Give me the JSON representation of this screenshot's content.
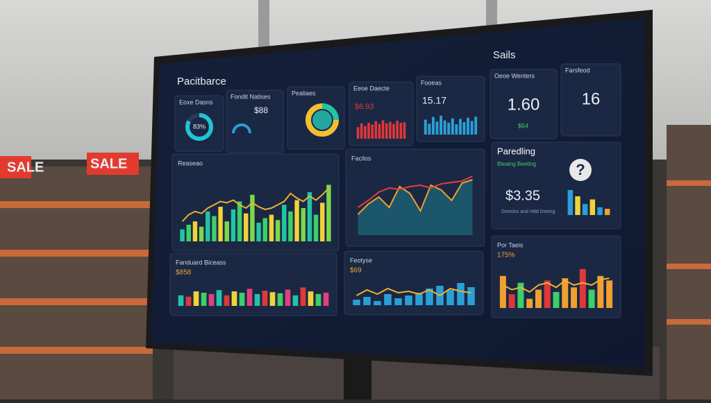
{
  "scene": {
    "signs": [
      "SALE",
      "SALE"
    ]
  },
  "header": {
    "title": "Pacitbarce",
    "brand": "Sails"
  },
  "tiles": [
    {
      "title": "Eoxe Dasns",
      "value": {
        "value": 83,
        "label": "83%"
      }
    },
    {
      "title": "Fondit Natises",
      "value": "$88"
    },
    {
      "title": "Pealiaes"
    },
    {
      "title": "Eeoe Daecte",
      "value": "$6.93",
      "bars": [
        45,
        60,
        50,
        62,
        55,
        68,
        58,
        72,
        60,
        66,
        58,
        70,
        62,
        64
      ],
      "color": "#e0373a"
    },
    {
      "title": "Fooeas",
      "value": "15.17",
      "bars": [
        55,
        40,
        65,
        48,
        70,
        52,
        44,
        60,
        38,
        58,
        46,
        62,
        50,
        66
      ],
      "color": "#2a9fd6"
    },
    {
      "title": "Oeoe Wenters",
      "value": "1.60",
      "sub": "$64"
    },
    {
      "title": "Farsfeod",
      "value": "16"
    }
  ],
  "panels": [
    {
      "title": "Reaseao",
      "values": [
        18,
        25,
        30,
        22,
        45,
        38,
        52,
        30,
        48,
        60,
        42,
        70,
        28,
        35,
        40,
        32,
        55,
        45,
        62,
        50,
        74,
        40,
        58,
        85
      ],
      "colors": [
        "#22c3a6",
        "#3ccf6a",
        "#f0d23a",
        "#7ad84a"
      ],
      "line": [
        30,
        40,
        45,
        42,
        50,
        55,
        60,
        58,
        62,
        55,
        50,
        58,
        52,
        48,
        50,
        55,
        60,
        72,
        65,
        60,
        68,
        62,
        70,
        80
      ]
    },
    {
      "title": "Facilos",
      "series": [
        {
          "color": "#f0a030",
          "values": [
            30,
            45,
            55,
            40,
            70,
            60,
            35,
            72,
            65,
            50,
            75,
            80
          ]
        },
        {
          "color": "#e04040",
          "values": [
            40,
            50,
            62,
            68,
            66,
            70,
            72,
            68,
            74,
            76,
            78,
            85
          ]
        }
      ]
    },
    {
      "title": "Paredling",
      "sub": "Bleaing Beeting",
      "value": "$3.35",
      "note": "Geeslss and Hdd Dseing",
      "icon": "?",
      "values": [
        80,
        60,
        35,
        50,
        25,
        20
      ],
      "colors": [
        "#2a9fd6",
        "#f0d23a",
        "#2a9fd6",
        "#f0d23a",
        "#2a9fd6",
        "#f0a030"
      ]
    },
    {
      "title": "Fanduard Biceass",
      "value": "$858",
      "values": [
        40,
        35,
        55,
        50,
        45,
        60,
        40,
        55,
        50,
        65,
        45,
        58,
        52,
        48,
        62,
        40,
        70,
        55,
        45,
        50
      ],
      "colors": [
        "#22c3a6",
        "#e0373a",
        "#f0d23a",
        "#3ccf6a",
        "#e04080"
      ]
    },
    {
      "title": "Feotyse",
      "value": "$69",
      "values": [
        20,
        30,
        15,
        40,
        25,
        35,
        45,
        60,
        70,
        55,
        80,
        65
      ],
      "colors": [
        "#2a9fd6"
      ],
      "line": [
        35,
        55,
        40,
        60,
        45,
        50,
        40,
        55,
        35,
        60,
        50,
        45
      ]
    },
    {
      "title": "Por Taeis",
      "value": "175%",
      "values": [
        70,
        30,
        55,
        20,
        40,
        60,
        35,
        65,
        45,
        85,
        40,
        70,
        60
      ],
      "colors": [
        "#f0a030",
        "#e0373a",
        "#3ccf6a",
        "#f0a030"
      ],
      "line": [
        50,
        40,
        45,
        35,
        50,
        55,
        45,
        60,
        50,
        55,
        50,
        62,
        65
      ]
    }
  ]
}
